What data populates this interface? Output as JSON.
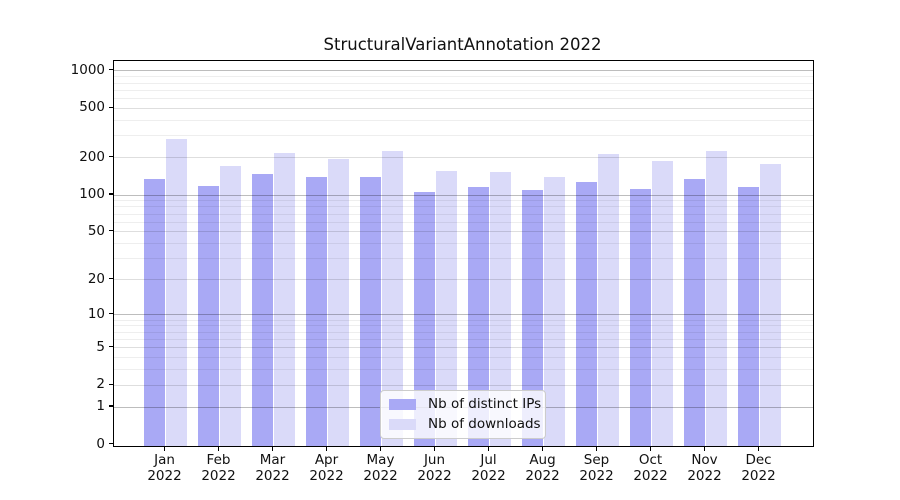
{
  "title": "StructuralVariantAnnotation 2022",
  "chart_data": {
    "type": "bar",
    "title": "StructuralVariantAnnotation 2022",
    "categories": [
      "Jan 2022",
      "Feb 2022",
      "Mar 2022",
      "Apr 2022",
      "May 2022",
      "Jun 2022",
      "Jul 2022",
      "Aug 2022",
      "Sep 2022",
      "Oct 2022",
      "Nov 2022",
      "Dec 2022"
    ],
    "series": [
      {
        "name": "Nb of distinct IPs",
        "color": "#a9a9f5",
        "values": [
          135,
          119,
          148,
          139,
          140,
          106,
          117,
          109,
          128,
          112,
          136,
          117
        ]
      },
      {
        "name": "Nb of downloads",
        "color": "#dadaf9",
        "values": [
          283,
          172,
          218,
          195,
          227,
          156,
          154,
          141,
          214,
          188,
          228,
          177
        ]
      }
    ],
    "xlabel": "",
    "ylabel": "",
    "yscale": "log1p",
    "yticks": [
      0,
      1,
      2,
      5,
      10,
      20,
      50,
      100,
      200,
      500,
      1000
    ],
    "ytick_labels": [
      "0",
      "1",
      "2",
      "5",
      "10",
      "20",
      "50",
      "100",
      "200",
      "500",
      "1000"
    ],
    "ylim": [
      0,
      1200
    ],
    "grid": true,
    "legend_position": "lower center"
  }
}
